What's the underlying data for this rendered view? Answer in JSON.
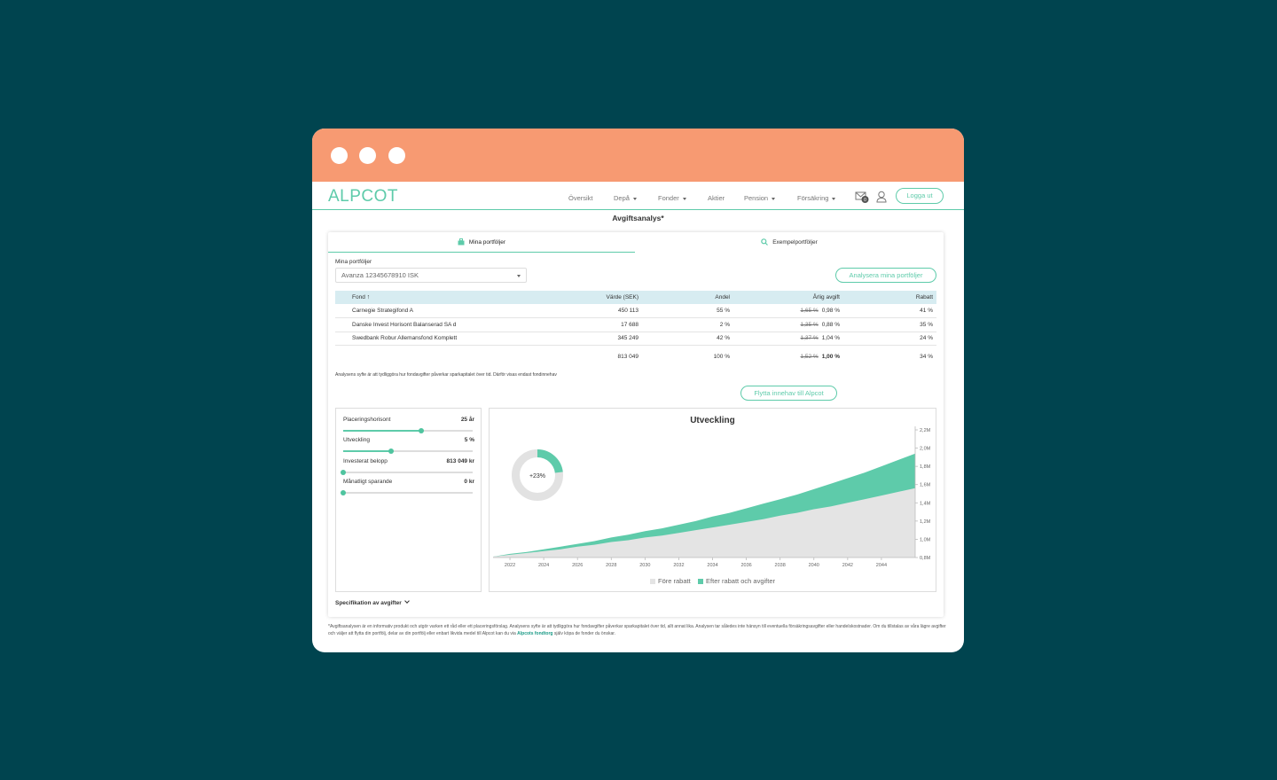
{
  "navbar": {
    "logo": "ALPCOT",
    "items": [
      {
        "label": "Översikt",
        "dropdown": false
      },
      {
        "label": "Depå",
        "dropdown": true
      },
      {
        "label": "Fonder",
        "dropdown": true
      },
      {
        "label": "Aktier",
        "dropdown": false
      },
      {
        "label": "Pension",
        "dropdown": true
      },
      {
        "label": "Försäkring",
        "dropdown": true
      }
    ],
    "mail_badge": "0",
    "logout": "Logga ut"
  },
  "page": {
    "title": "Avgiftsanalys*"
  },
  "tabs": {
    "mine": "Mina portföljer",
    "example": "Exempelportföljer"
  },
  "portfolio": {
    "label": "Mina portföljer",
    "selected": "Avanza 12345678910 ISK",
    "analyse_button": "Analysera mina portföljer"
  },
  "table": {
    "headers": {
      "fund": "Fond",
      "value": "Värde (SEK)",
      "share": "Andel",
      "fee": "Årlig avgift",
      "rebate": "Rabatt"
    },
    "rows": [
      {
        "name": "Carnegie Strategifond A",
        "value": "450 113",
        "share": "55 %",
        "old_fee": "1,65 %",
        "fee": "0,98 %",
        "rebate": "41 %"
      },
      {
        "name": "Danske Invest Horisont Balanserad SA d",
        "value": "17 688",
        "share": "2 %",
        "old_fee": "1,35 %",
        "fee": "0,88 %",
        "rebate": "35 %"
      },
      {
        "name": "Swedbank Robur Allemansfond Komplett",
        "value": "345 249",
        "share": "42 %",
        "old_fee": "1,37 %",
        "fee": "1,04 %",
        "rebate": "24 %"
      }
    ],
    "total": {
      "value": "813 049",
      "share": "100 %",
      "old_fee": "1,52 %",
      "fee": "1,00 %",
      "rebate": "34 %"
    }
  },
  "note": "Analysens syfte är att tydliggöra hur fondavgifter påverkar sparkapitalet över tid. Därför visas endast fondinnehav",
  "move_button": "Flytta innehav till Alpcot",
  "sliders": [
    {
      "label": "Placeringshorisont",
      "value": "25 år",
      "level": 0.6
    },
    {
      "label": "Utveckling",
      "value": "5 %",
      "level": 0.37
    },
    {
      "label": "Investerat belopp",
      "value": "813 049 kr",
      "level": 0.0
    },
    {
      "label": "Månatligt sparande",
      "value": "0 kr",
      "level": 0.0
    }
  ],
  "donut": {
    "label": "+23%",
    "fraction": 0.23
  },
  "chart_data": {
    "type": "area",
    "title": "Utveckling",
    "x": [
      2021,
      2022,
      2023,
      2024,
      2025,
      2026,
      2027,
      2028,
      2029,
      2030,
      2031,
      2032,
      2033,
      2034,
      2035,
      2036,
      2037,
      2038,
      2039,
      2040,
      2041,
      2042,
      2043,
      2044,
      2045,
      2046
    ],
    "x_ticks": [
      "2022",
      "2024",
      "2026",
      "2028",
      "2030",
      "2032",
      "2034",
      "2036",
      "2038",
      "2040",
      "2042",
      "2044"
    ],
    "y_ticks": [
      "0,8M",
      "1,0M",
      "1,2M",
      "1,4M",
      "1,6M",
      "1,8M",
      "2,0M",
      "2,2M"
    ],
    "ylim": [
      0.8,
      2.2
    ],
    "series": [
      {
        "name": "Före rabatt",
        "color": "#e4e4e4",
        "values": [
          0.81,
          0.83,
          0.85,
          0.87,
          0.89,
          0.92,
          0.94,
          0.97,
          0.99,
          1.02,
          1.04,
          1.07,
          1.1,
          1.13,
          1.16,
          1.19,
          1.22,
          1.26,
          1.29,
          1.33,
          1.36,
          1.4,
          1.44,
          1.48,
          1.52,
          1.56
        ]
      },
      {
        "name": "Efter rabatt och avgifter",
        "color": "#5ecbaa",
        "values": [
          0.81,
          0.84,
          0.86,
          0.89,
          0.92,
          0.95,
          0.98,
          1.02,
          1.05,
          1.09,
          1.12,
          1.16,
          1.2,
          1.25,
          1.29,
          1.34,
          1.39,
          1.44,
          1.49,
          1.55,
          1.61,
          1.67,
          1.73,
          1.8,
          1.87,
          1.94
        ]
      }
    ]
  },
  "spec_toggle": "Specifikation av avgifter",
  "footnote": {
    "text": "*Avgiftsanalysen är en informativ produkt och utgör varken ett råd eller ett placeringsförslag. Analysens syfte är att tydliggöra hur fondavgifter påverkar sparkapitalet över tid, allt annat lika. Analysen tar således inte hänsyn till eventuella försäkringsavgifter eller handelskostnader. Om du tillstalas av våra lägre avgifter och väljer att flytta din portfölj, delar av din portfölj eller enbart likvida medel till Alpcot kan du via",
    "link": "Alpcots fondtorg",
    "tail": "själv köpa de fonder du önskar."
  }
}
